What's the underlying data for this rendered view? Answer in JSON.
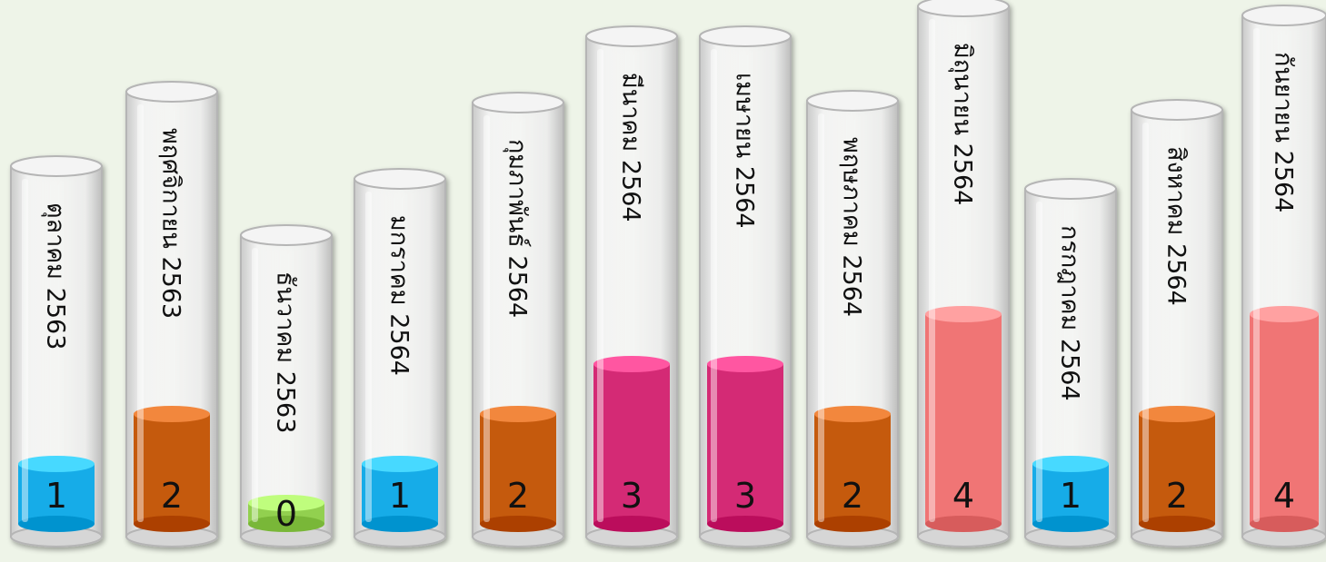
{
  "chart_data": {
    "type": "bar",
    "style": "cylinder-tubes",
    "categories": [
      "ตุลาคม 2563",
      "พฤศจิกายน 2563",
      "ธันวาคม 2563",
      "มกราคม 2564",
      "กุมภาพันธ์ 2564",
      "มีนาคม 2564",
      "เมษายน 2564",
      "พฤษภาคม 2564",
      "มิถุนายน 2564",
      "กรกฎาคม 2564",
      "สิงหาคม 2564",
      "กันยายน 2564"
    ],
    "values": [
      1,
      2,
      0,
      1,
      2,
      3,
      3,
      2,
      4,
      1,
      2,
      4
    ],
    "value_labels": [
      "1",
      "2",
      "0",
      "1",
      "2",
      "3",
      "3",
      "2",
      "4",
      "1",
      "2",
      "4"
    ],
    "colors": {
      "1": "#19ace8",
      "2": "#c55a11",
      "0": "#92d050",
      "3": "#d42a74",
      "4": "#f07474"
    }
  }
}
